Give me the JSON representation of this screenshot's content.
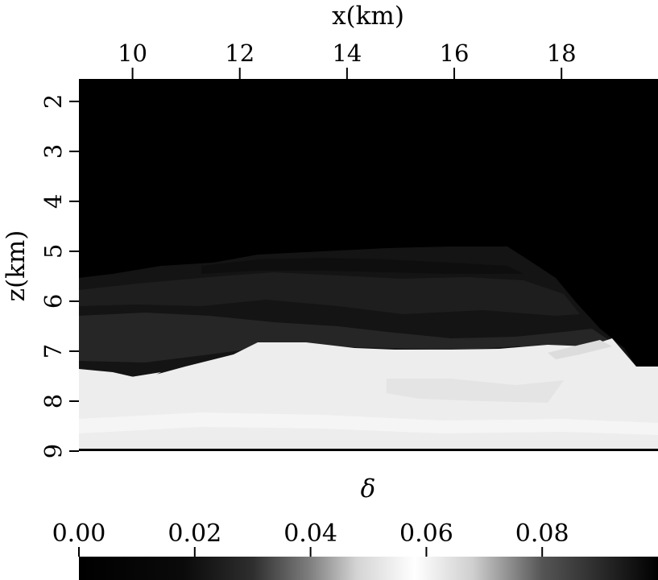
{
  "chart_data": {
    "type": "heatmap",
    "xlabel": "x(km)",
    "ylabel": "z(km)",
    "x_axis_position": "top",
    "xlim": [
      9.0,
      19.8
    ],
    "ylim": [
      1.55,
      9.0
    ],
    "y_inverted": true,
    "xticks": [
      10,
      12,
      14,
      16,
      18
    ],
    "xtick_labels": [
      "10",
      "12",
      "14",
      "16",
      "18"
    ],
    "yticks": [
      2,
      3,
      4,
      5,
      6,
      7,
      8,
      9
    ],
    "ytick_labels": [
      "2",
      "3",
      "4",
      "5",
      "6",
      "7",
      "8",
      "9"
    ],
    "colormap": "grayscale",
    "value_range": [
      0.0,
      0.1
    ],
    "description_values": {
      "upper_region_delta": 0.0,
      "lower_region_delta_approx": 0.058
    },
    "colorbar": {
      "label": "δ",
      "placement": "bottom",
      "ticks": [
        0.0,
        0.02,
        0.04,
        0.06,
        0.08
      ],
      "tick_labels": [
        "0.00",
        "0.02",
        "0.04",
        "0.06",
        "0.08"
      ],
      "range": [
        0.0,
        0.1
      ],
      "gradient": [
        {
          "value": 0.0,
          "color": "#000000"
        },
        {
          "value": 0.018,
          "color": "#0a0a0a"
        },
        {
          "value": 0.03,
          "color": "#2e2e2e"
        },
        {
          "value": 0.04,
          "color": "#808080"
        },
        {
          "value": 0.048,
          "color": "#d4d4d4"
        },
        {
          "value": 0.058,
          "color": "#ffffff"
        },
        {
          "value": 0.068,
          "color": "#cfcfcf"
        },
        {
          "value": 0.08,
          "color": "#555555"
        },
        {
          "value": 0.1,
          "color": "#000000"
        }
      ]
    }
  }
}
